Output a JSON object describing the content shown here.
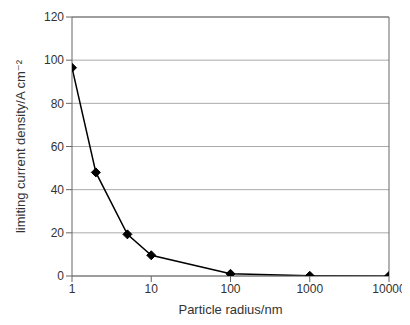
{
  "chart_data": {
    "type": "line",
    "x": [
      1,
      2,
      5,
      10,
      100,
      1000,
      10000
    ],
    "values": [
      96.5,
      48,
      19.3,
      9.6,
      1,
      0.1,
      0.01
    ],
    "xlim": [
      1,
      10000
    ],
    "xticks": [
      1,
      10,
      100,
      1000,
      10000
    ],
    "ylim": [
      0,
      120
    ],
    "yticks": [
      0,
      20,
      40,
      60,
      80,
      100,
      120
    ],
    "log": "x",
    "grid": true,
    "color": "#000000",
    "marker": "diamond",
    "x_label": "Particle radius/nm",
    "y_label": "limiting current density/A cm⁻²"
  }
}
